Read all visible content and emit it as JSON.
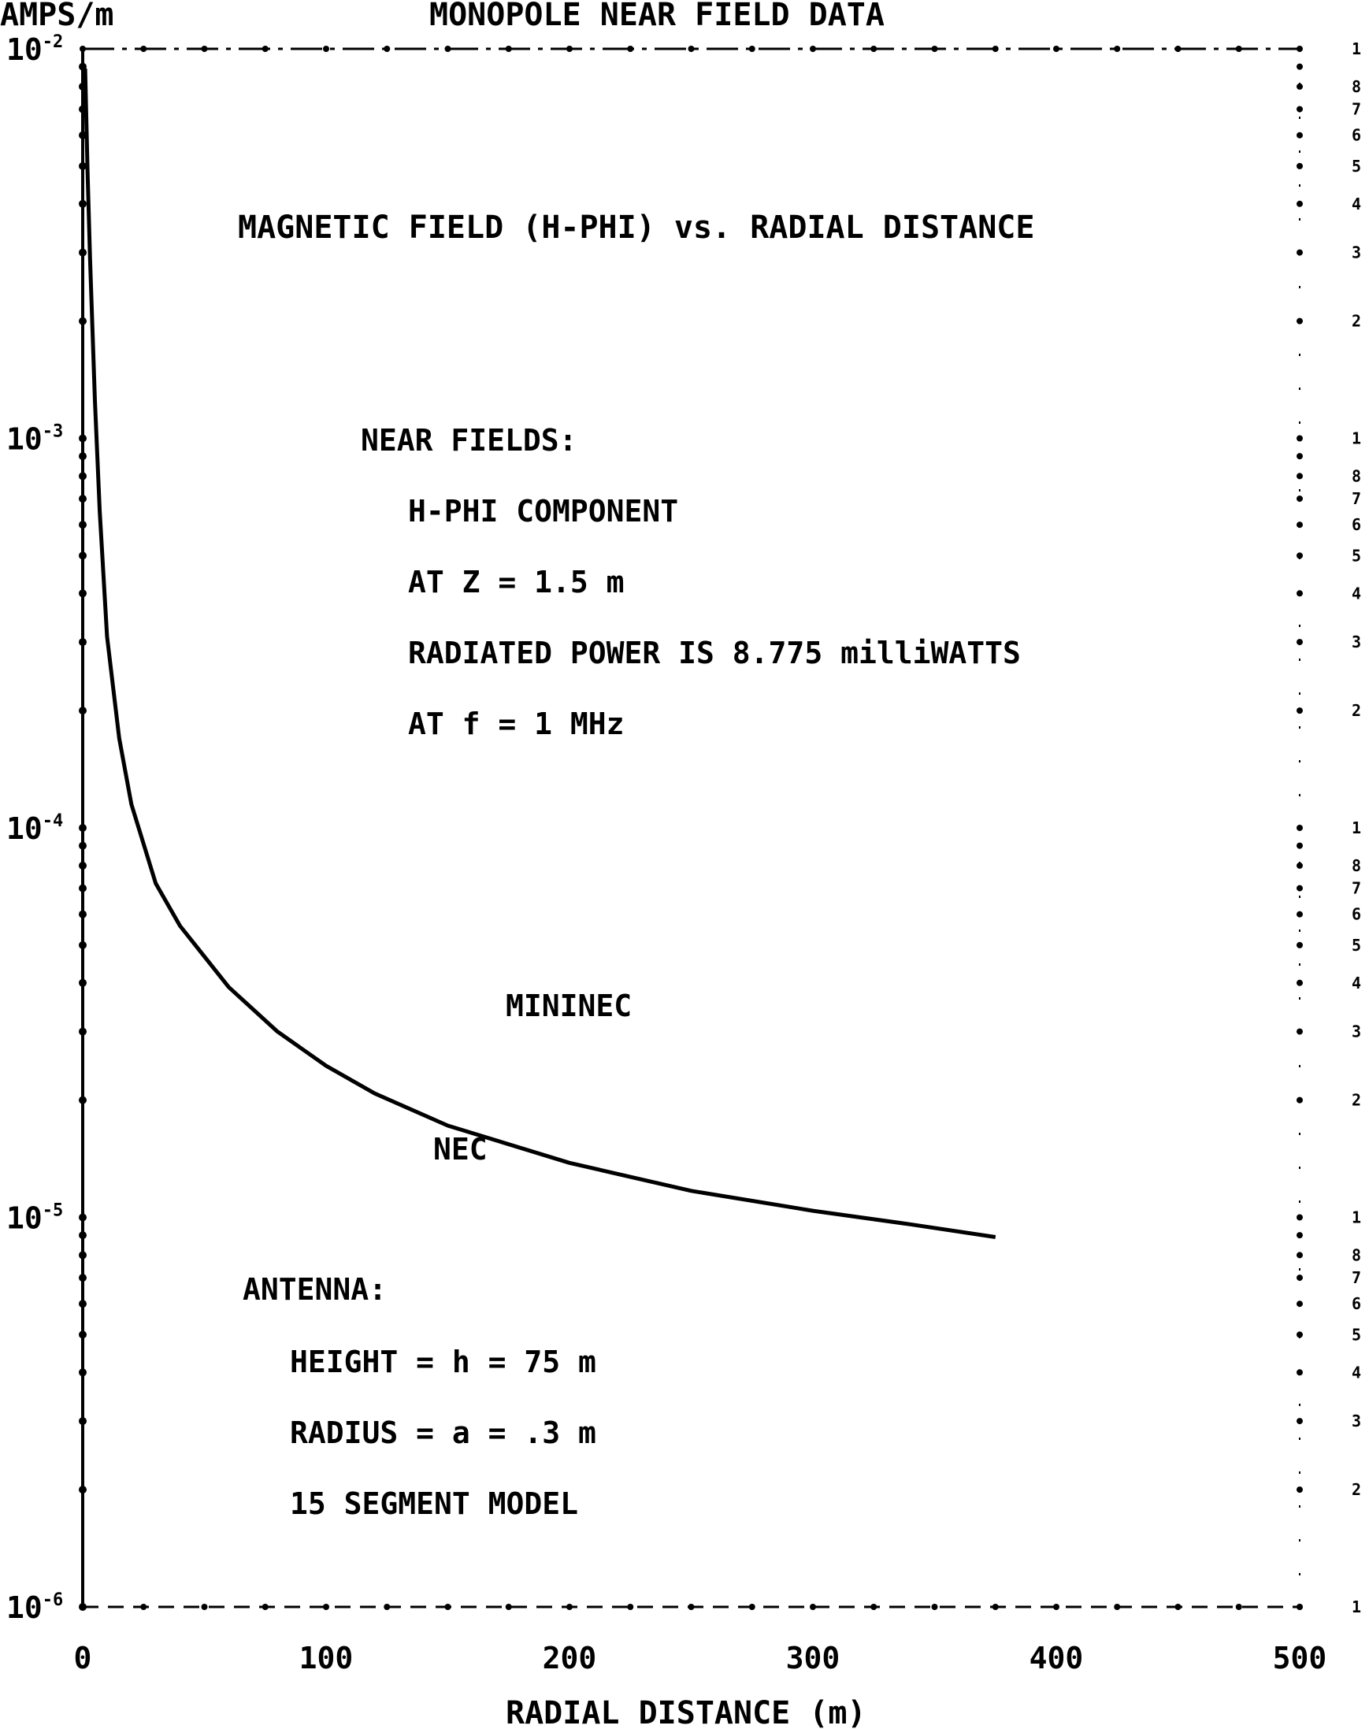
{
  "chart_data": {
    "type": "line",
    "title": "MONOPOLE NEAR FIELD DATA",
    "subtitle": "MAGNETIC FIELD (H-PHI) vs. RADIAL DISTANCE",
    "ylabel": "AMPS/m",
    "xlabel": "RADIAL DISTANCE (m)",
    "xlim": [
      0,
      500
    ],
    "ylim": [
      1e-06,
      0.01
    ],
    "yscale": "log",
    "x_ticks": [
      "0",
      "100",
      "200",
      "300",
      "400",
      "500"
    ],
    "y_ticks": [
      {
        "base": "10",
        "exp": "-6"
      },
      {
        "base": "10",
        "exp": "-5"
      },
      {
        "base": "10",
        "exp": "-4"
      },
      {
        "base": "10",
        "exp": "-3"
      },
      {
        "base": "10",
        "exp": "-2"
      }
    ],
    "y_minor_labels": [
      "2",
      "3",
      "4",
      "5",
      "6",
      "7",
      "8",
      "1"
    ],
    "grid": false,
    "series": [
      {
        "name": "",
        "x": [
          1,
          2,
          3,
          4,
          5,
          7,
          10,
          15,
          20,
          30,
          40,
          60,
          80,
          100,
          120,
          150,
          200,
          250,
          300,
          340,
          375
        ],
        "values": [
          0.0089,
          0.0048,
          0.0029,
          0.0019,
          0.00125,
          0.00065,
          0.00031,
          0.00017,
          0.000115,
          7.2e-05,
          5.6e-05,
          3.9e-05,
          3e-05,
          2.45e-05,
          2.08e-05,
          1.72e-05,
          1.38e-05,
          1.17e-05,
          1.04e-05,
          9.6e-06,
          8.9e-06
        ]
      }
    ],
    "annotations": {
      "near_fields": [
        "NEAR FIELDS:",
        "H-PHI COMPONENT",
        "AT Z = 1.5 m",
        "RADIATED POWER IS 8.775 milliWATTS",
        "AT f = 1 MHz"
      ],
      "curve_labels": [
        "MININEC",
        "NEC"
      ],
      "antenna": [
        "ANTENNA:",
        "HEIGHT = h = 75 m",
        "RADIUS = a = .3 m",
        "15 SEGMENT MODEL"
      ]
    }
  }
}
